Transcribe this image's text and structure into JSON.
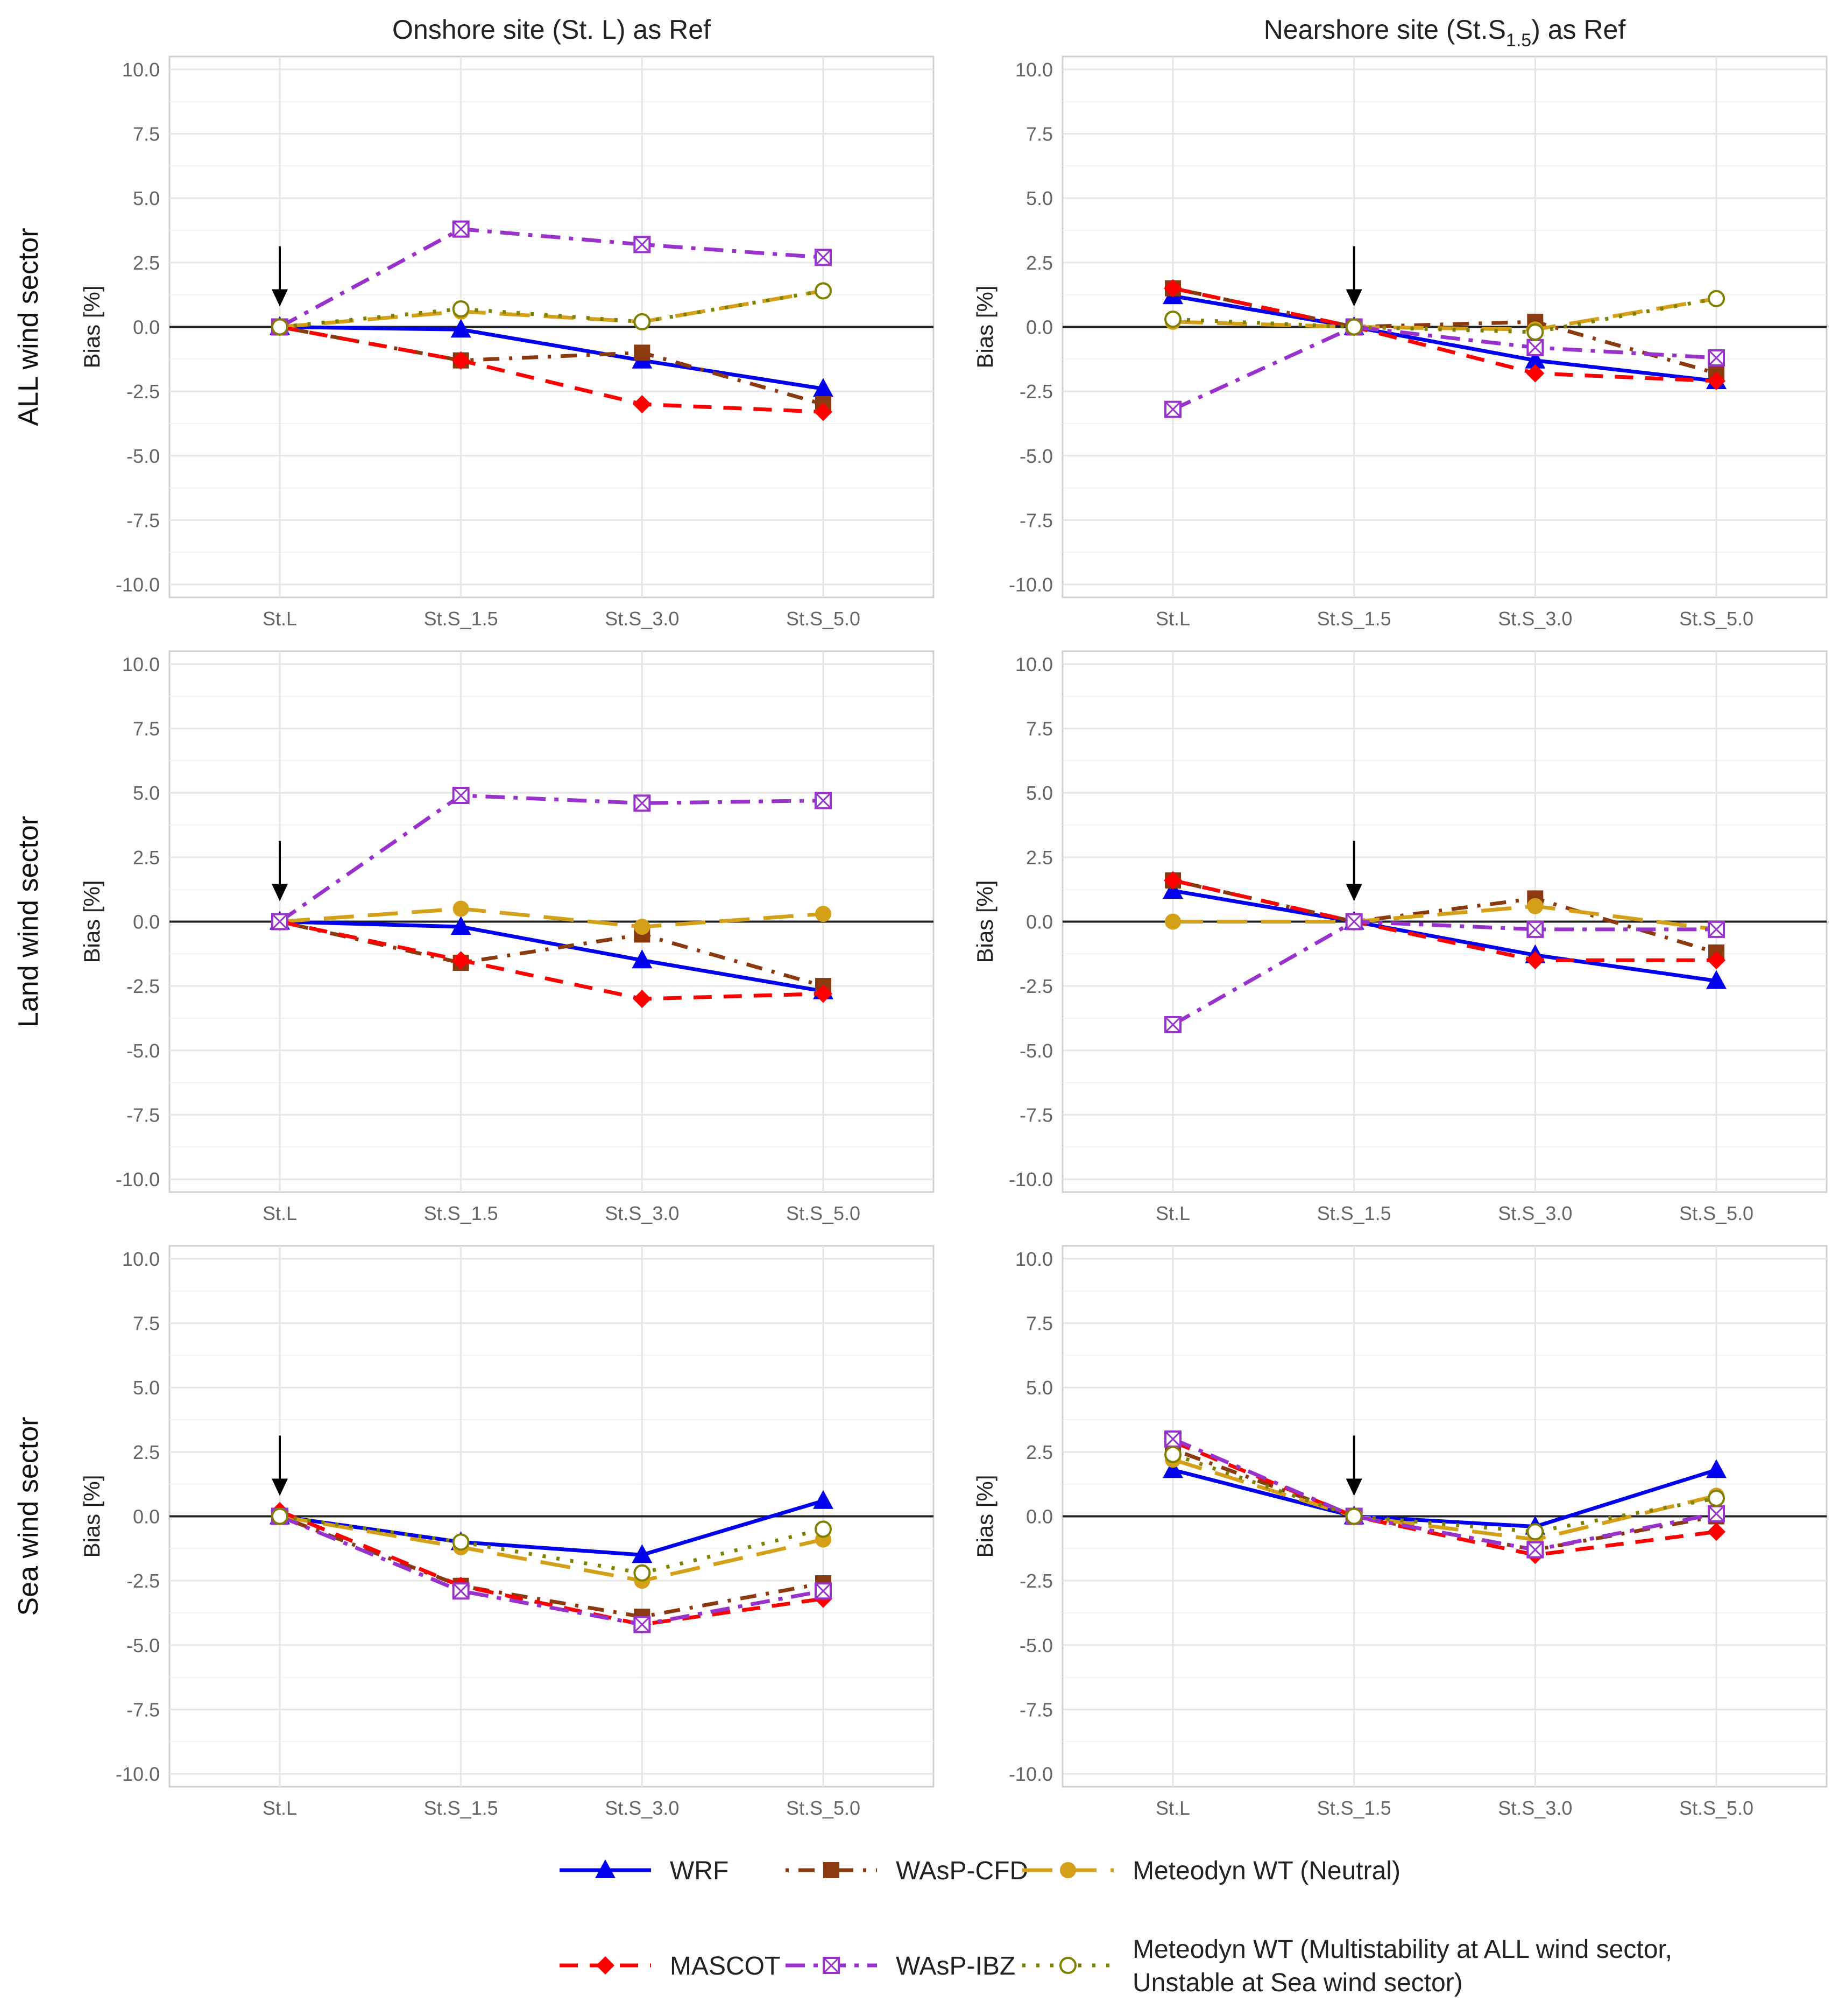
{
  "chart_data": {
    "type": "line",
    "y_axis_label": "Bias [%]",
    "ylim": [
      -10.5,
      10.5
    ],
    "yticks": [
      10.0,
      7.5,
      5.0,
      2.5,
      0.0,
      -2.5,
      -5.0,
      -7.5,
      -10.0
    ],
    "ytick_labels": [
      "10.0",
      "7.5",
      "5.0",
      "2.5",
      "0.0",
      "-2.5",
      "-5.0",
      "-7.5",
      "-10.0"
    ],
    "categories": [
      "St.L",
      "St.S_1.5",
      "St.S_3.0",
      "St.S_5.0"
    ],
    "column_titles": [
      {
        "main": "Onshore site (St. L) as Ref"
      },
      {
        "prefix": "Nearshore site (St.S",
        "sub": "1.5",
        "suffix": ") as Ref"
      }
    ],
    "row_titles": [
      "ALL wind sector",
      "Land wind sector",
      "Sea wind sector"
    ],
    "legend": [
      {
        "key": "WRF",
        "label": "WRF"
      },
      {
        "key": "WAsP-CFD",
        "label": "WAsP-CFD"
      },
      {
        "key": "MeteodynN",
        "label": "Meteodyn WT (Neutral)"
      },
      {
        "key": "MASCOT",
        "label": "MASCOT"
      },
      {
        "key": "WAsP-IBZ",
        "label": "WAsP-IBZ"
      },
      {
        "key": "MeteodynM",
        "label_lines": [
          "Meteodyn WT (Multistability at ALL wind sector,",
          "Unstable at Sea wind sector)"
        ]
      }
    ],
    "series_styles": {
      "WRF": {
        "color": "#0000ee",
        "marker": "triangle",
        "dash": "solid"
      },
      "WAsP-CFD": {
        "color": "#8b3a0f",
        "marker": "square",
        "dash": "dotdash"
      },
      "MeteodynN": {
        "color": "#d4a017",
        "marker": "circle",
        "dash": "longdash"
      },
      "MASCOT": {
        "color": "#ff0000",
        "marker": "diamond",
        "dash": "dashed"
      },
      "WAsP-IBZ": {
        "color": "#9932cc",
        "marker": "boxx",
        "dash": "dashdot"
      },
      "MeteodynM": {
        "color": "#808000",
        "marker": "opencircle",
        "dash": "dotted"
      }
    },
    "panels": [
      {
        "row": 0,
        "col": 0,
        "ref_index": 0,
        "series": [
          {
            "key": "WRF",
            "values": [
              0.0,
              -0.1,
              -1.3,
              -2.4
            ]
          },
          {
            "key": "WAsP-CFD",
            "values": [
              0.0,
              -1.3,
              -1.0,
              -3.0
            ]
          },
          {
            "key": "MeteodynN",
            "values": [
              0.0,
              0.6,
              0.2,
              1.4
            ]
          },
          {
            "key": "MASCOT",
            "values": [
              0.0,
              -1.3,
              -3.0,
              -3.3
            ]
          },
          {
            "key": "WAsP-IBZ",
            "values": [
              0.0,
              3.8,
              3.2,
              2.7
            ]
          },
          {
            "key": "MeteodynM",
            "values": [
              0.0,
              0.7,
              0.2,
              1.4
            ]
          }
        ]
      },
      {
        "row": 0,
        "col": 1,
        "ref_index": 1,
        "series": [
          {
            "key": "WRF",
            "values": [
              1.2,
              0.0,
              -1.3,
              -2.1
            ]
          },
          {
            "key": "WAsP-CFD",
            "values": [
              1.5,
              0.0,
              0.2,
              -1.8
            ]
          },
          {
            "key": "MeteodynN",
            "values": [
              0.2,
              0.0,
              -0.1,
              1.1
            ]
          },
          {
            "key": "MASCOT",
            "values": [
              1.5,
              0.0,
              -1.8,
              -2.1
            ]
          },
          {
            "key": "WAsP-IBZ",
            "values": [
              -3.2,
              0.0,
              -0.8,
              -1.2
            ]
          },
          {
            "key": "MeteodynM",
            "values": [
              0.3,
              0.0,
              -0.2,
              1.1
            ]
          }
        ]
      },
      {
        "row": 1,
        "col": 0,
        "ref_index": 0,
        "series": [
          {
            "key": "WRF",
            "values": [
              0.0,
              -0.2,
              -1.5,
              -2.7
            ]
          },
          {
            "key": "WAsP-CFD",
            "values": [
              0.0,
              -1.6,
              -0.5,
              -2.5
            ]
          },
          {
            "key": "MeteodynN",
            "values": [
              0.0,
              0.5,
              -0.2,
              0.3
            ]
          },
          {
            "key": "MASCOT",
            "values": [
              0.0,
              -1.5,
              -3.0,
              -2.8
            ]
          },
          {
            "key": "WAsP-IBZ",
            "values": [
              0.0,
              4.9,
              4.6,
              4.7
            ]
          }
        ]
      },
      {
        "row": 1,
        "col": 1,
        "ref_index": 1,
        "series": [
          {
            "key": "WRF",
            "values": [
              1.2,
              0.0,
              -1.3,
              -2.3
            ]
          },
          {
            "key": "WAsP-CFD",
            "values": [
              1.6,
              0.0,
              0.9,
              -1.2
            ]
          },
          {
            "key": "MeteodynN",
            "values": [
              0.0,
              0.0,
              0.6,
              -0.3
            ]
          },
          {
            "key": "MASCOT",
            "values": [
              1.6,
              0.0,
              -1.5,
              -1.5
            ]
          },
          {
            "key": "WAsP-IBZ",
            "values": [
              -4.0,
              0.0,
              -0.3,
              -0.3
            ]
          }
        ]
      },
      {
        "row": 2,
        "col": 0,
        "ref_index": 0,
        "series": [
          {
            "key": "WRF",
            "values": [
              0.0,
              -1.0,
              -1.5,
              0.6
            ]
          },
          {
            "key": "WAsP-CFD",
            "values": [
              0.0,
              -2.7,
              -3.9,
              -2.6
            ]
          },
          {
            "key": "MeteodynN",
            "values": [
              0.0,
              -1.2,
              -2.5,
              -0.9
            ]
          },
          {
            "key": "MASCOT",
            "values": [
              0.2,
              -2.7,
              -4.2,
              -3.2
            ]
          },
          {
            "key": "WAsP-IBZ",
            "values": [
              0.0,
              -2.9,
              -4.2,
              -2.9
            ]
          },
          {
            "key": "MeteodynM",
            "values": [
              0.0,
              -1.0,
              -2.2,
              -0.5
            ]
          }
        ]
      },
      {
        "row": 2,
        "col": 1,
        "ref_index": 1,
        "series": [
          {
            "key": "WRF",
            "values": [
              1.8,
              0.0,
              -0.4,
              1.8
            ]
          },
          {
            "key": "WAsP-CFD",
            "values": [
              2.6,
              0.0,
              -1.3,
              0.0
            ]
          },
          {
            "key": "MeteodynN",
            "values": [
              2.2,
              0.0,
              -0.9,
              0.8
            ]
          },
          {
            "key": "MASCOT",
            "values": [
              2.9,
              0.0,
              -1.5,
              -0.6
            ]
          },
          {
            "key": "WAsP-IBZ",
            "values": [
              3.0,
              0.0,
              -1.3,
              0.1
            ]
          },
          {
            "key": "MeteodynM",
            "values": [
              2.4,
              0.0,
              -0.6,
              0.7
            ]
          }
        ]
      }
    ]
  }
}
